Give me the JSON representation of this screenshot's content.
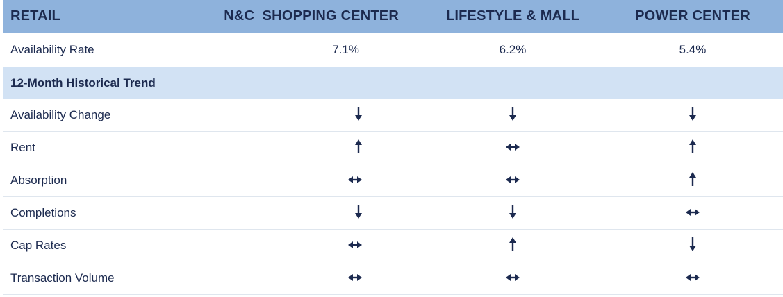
{
  "header": {
    "retail": "RETAIL",
    "col1": "N&C  SHOPPING CENTER",
    "col2": "LIFESTYLE & MALL",
    "col3": "POWER CENTER"
  },
  "availability": {
    "label": "Availability Rate",
    "values": [
      "7.1%",
      "6.2%",
      "5.4%"
    ]
  },
  "section": {
    "title": "12-Month Historical Trend"
  },
  "trends": [
    {
      "label": "Availability Change",
      "arrows": [
        "down-arrow-icon",
        "down-arrow-icon",
        "down-arrow-icon"
      ]
    },
    {
      "label": "Rent",
      "arrows": [
        "up-arrow-icon",
        "left-right-arrow-icon",
        "up-arrow-icon"
      ]
    },
    {
      "label": "Absorption",
      "arrows": [
        "left-right-arrow-icon",
        "left-right-arrow-icon",
        "up-arrow-icon"
      ]
    },
    {
      "label": "Completions",
      "arrows": [
        "down-arrow-icon",
        "down-arrow-icon",
        "left-right-arrow-icon"
      ]
    },
    {
      "label": "Cap Rates",
      "arrows": [
        "left-right-arrow-icon",
        "up-arrow-icon",
        "down-arrow-icon"
      ]
    },
    {
      "label": "Transaction Volume",
      "arrows": [
        "left-right-arrow-icon",
        "left-right-arrow-icon",
        "left-right-arrow-icon"
      ]
    }
  ],
  "colors": {
    "header_bg": "#8eb2dc",
    "section_bg": "#d2e2f4",
    "text": "#1c2a4f"
  }
}
